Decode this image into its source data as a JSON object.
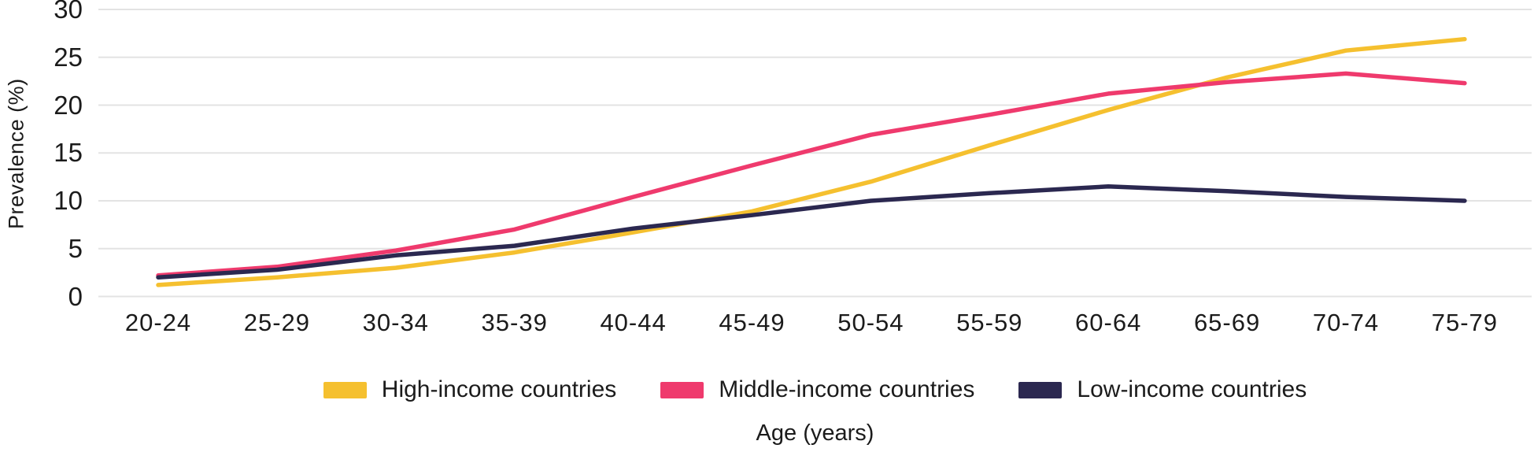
{
  "figure": {
    "background": "#ffffff",
    "text_color": "#1b1b1b",
    "gridline_color": "#e3e3e3"
  },
  "chart_data": {
    "type": "line",
    "title": "",
    "xlabel": "Age (years)",
    "ylabel": "Prevalence (%)",
    "categories": [
      "20-24",
      "25-29",
      "30-34",
      "35-39",
      "40-44",
      "45-49",
      "50-54",
      "55-59",
      "60-64",
      "65-69",
      "70-74",
      "75-79"
    ],
    "y_ticks": [
      30,
      25,
      20,
      15,
      10,
      5,
      0
    ],
    "ylim": [
      0,
      30
    ],
    "grid": "horizontal-only",
    "legend_position": "bottom",
    "series": [
      {
        "name": "High-income countries",
        "color": "#F5C02F",
        "values": [
          1.2,
          2.0,
          3.0,
          4.6,
          6.7,
          8.9,
          12.0,
          15.8,
          19.5,
          22.9,
          25.7,
          26.9
        ]
      },
      {
        "name": "Middle-income countries",
        "color": "#EF3A6D",
        "values": [
          2.2,
          3.1,
          4.8,
          7.0,
          10.4,
          13.7,
          16.9,
          19.0,
          21.2,
          22.4,
          23.3,
          22.3
        ]
      },
      {
        "name": "Low-income countries",
        "color": "#2B2850",
        "values": [
          2.0,
          2.8,
          4.3,
          5.3,
          7.1,
          8.5,
          10.0,
          10.8,
          11.5,
          11.0,
          10.4,
          10.0
        ]
      }
    ]
  }
}
